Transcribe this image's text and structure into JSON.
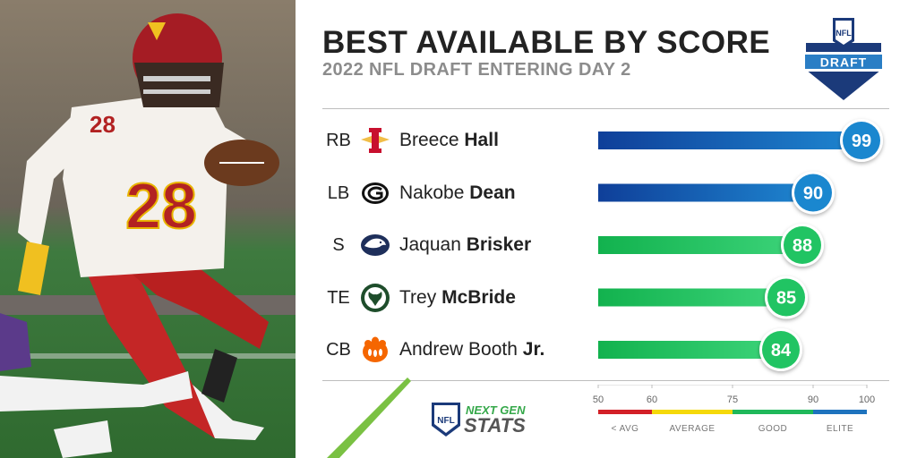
{
  "chart_data": {
    "type": "bar",
    "orientation": "horizontal",
    "title": "BEST AVAILABLE BY SCORE",
    "subtitle": "2022 NFL DRAFT ENTERING DAY 2",
    "xlim": [
      50,
      100
    ],
    "rows": [
      {
        "position": "RB",
        "first": "Breece",
        "last": "Hall",
        "team_icon": "iowa-state-logo",
        "score": 99
      },
      {
        "position": "LB",
        "first": "Nakobe",
        "last": "Dean",
        "team_icon": "georgia-logo",
        "score": 90
      },
      {
        "position": "S",
        "first": "Jaquan",
        "last": "Brisker",
        "team_icon": "penn-state-logo",
        "score": 88
      },
      {
        "position": "TE",
        "first": "Trey",
        "last": "McBride",
        "team_icon": "colorado-state-logo",
        "score": 85
      },
      {
        "position": "CB",
        "first": "Andrew Booth",
        "last": "Jr.",
        "team_icon": "clemson-logo",
        "score": 84
      }
    ],
    "scale": {
      "ticks": [
        "50",
        "60",
        "75",
        "90",
        "100"
      ],
      "bands": [
        {
          "label": "< AVG",
          "from": 50,
          "to": 60,
          "color": "#d32027"
        },
        {
          "label": "AVERAGE",
          "from": 60,
          "to": 75,
          "color": "#f5d90a"
        },
        {
          "label": "GOOD",
          "from": 75,
          "to": 90,
          "color": "#1fb85a"
        },
        {
          "label": "ELITE",
          "from": 90,
          "to": 100,
          "color": "#1e73be"
        }
      ]
    }
  },
  "colors": {
    "elite_start": "#0f3f99",
    "elite_end": "#1e86d0",
    "elite_badge": "#1a87cf",
    "good_start": "#12b24e",
    "good_end": "#3dd47a",
    "good_badge": "#21c463"
  },
  "logos": {
    "draft_logo_text": "DRAFT",
    "nfl_shield_text": "NFL",
    "ngs_line1": "NEXT GEN",
    "ngs_line2": "STATS"
  }
}
